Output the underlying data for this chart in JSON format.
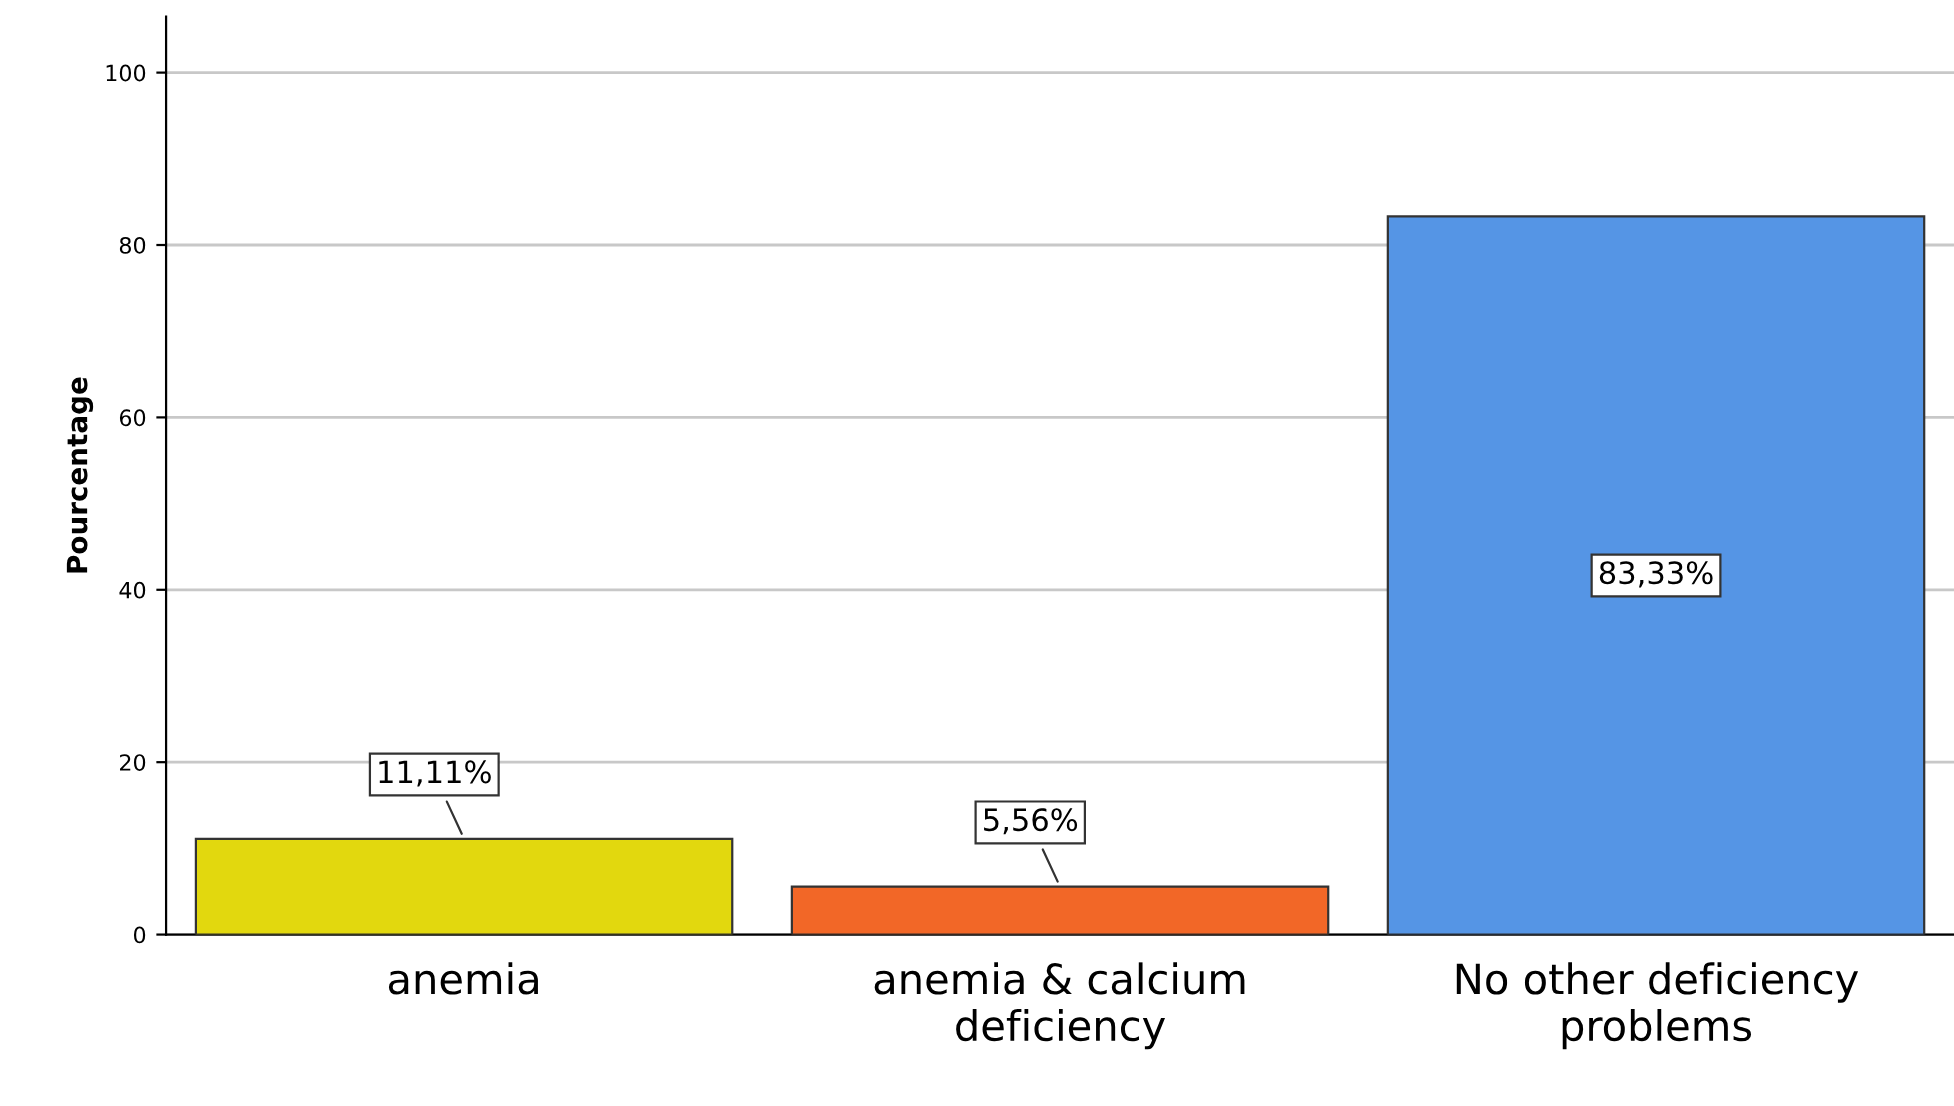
{
  "chart_data": {
    "type": "bar",
    "ylabel": "Pourcentage",
    "categories": [
      "anemia",
      "anemia & calcium\ndeficiency",
      "No other deficiency\nproblems"
    ],
    "values": [
      11.11,
      5.56,
      83.33
    ],
    "colors": [
      "#e2d80e",
      "#f26727",
      "#5595e5"
    ],
    "value_labels": [
      "11,11%",
      "5,56%",
      "83,33%"
    ],
    "ylim": [
      0,
      106.5
    ],
    "yticks": [
      0,
      20,
      40,
      60,
      80,
      100
    ],
    "grid": "y",
    "legend": false
  }
}
